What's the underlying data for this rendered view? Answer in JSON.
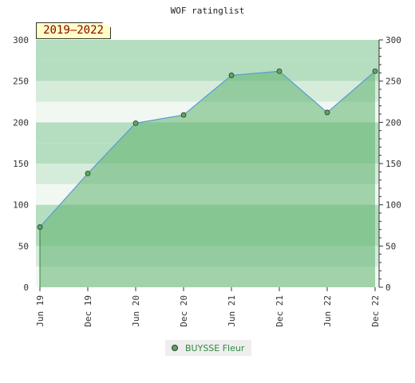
{
  "chart_data": {
    "type": "area",
    "title": "WOF ratinglist",
    "badge": "2019–2022",
    "categories": [
      "Jun 19",
      "Dec 19",
      "Jun 20",
      "Dec 20",
      "Jun 21",
      "Dec 21",
      "Jun 22",
      "Dec 22"
    ],
    "series": [
      {
        "name": "BUYSSE Fleur",
        "values": [
          73,
          138,
          199,
          209,
          257,
          262,
          212,
          262
        ]
      }
    ],
    "ylim": [
      0,
      300
    ],
    "yticks": [
      0,
      50,
      100,
      150,
      200,
      250,
      300
    ],
    "grid": false,
    "legend_position": "bottom-center",
    "colors": {
      "line": "#5b9bd5",
      "area": "#5fb36e",
      "marker": "#5aaa5a",
      "band_light": "#b5ddc0",
      "band_lighter": "#d6ecdb",
      "band_lightest": "#f1f8f2"
    }
  }
}
